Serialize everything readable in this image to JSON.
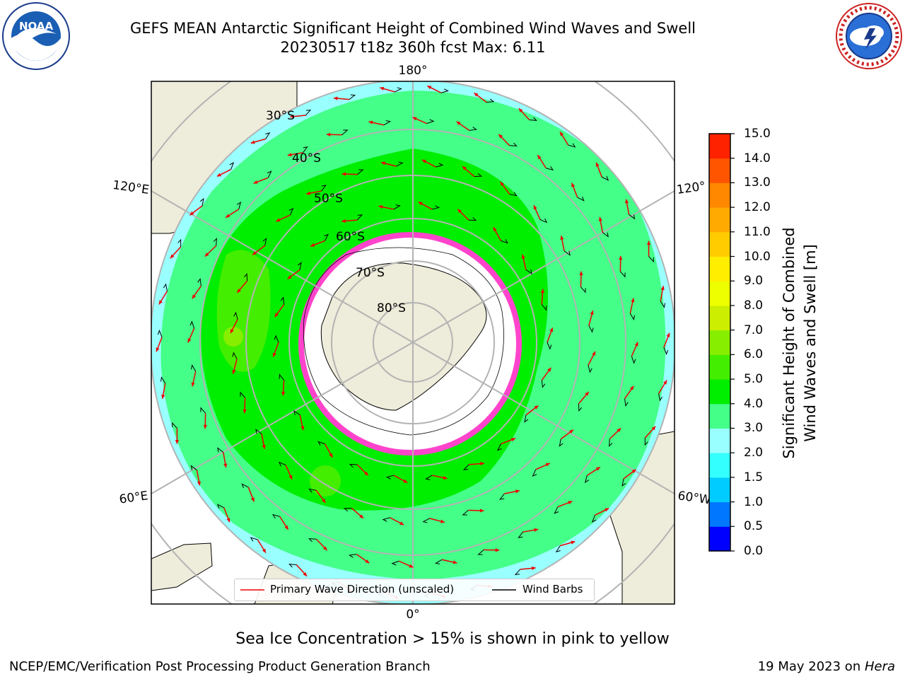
{
  "title_line1": "GEFS MEAN Antarctic Significant Height of Combined Wind Waves and Swell",
  "title_line2": "20230517 t18z 360h fcst   Max: 6.11",
  "logos": {
    "left": "noaa-logo",
    "right": "nws-logo"
  },
  "map": {
    "projection": "south-polar-stereographic",
    "lon_labels": {
      "top": "180°",
      "bottom": "0°",
      "left_upper": "120°E",
      "left_lower": "60°E",
      "right_upper": "120°",
      "right_lower": "60°W"
    },
    "lat_labels": [
      "30°S",
      "40°S",
      "50°S",
      "60°S",
      "70°S",
      "80°S"
    ],
    "colors": {
      "land": "#eeecda",
      "ocean_outside": "#ffffff",
      "ice": "#ff44cc",
      "graticule": "#b3b3b3",
      "arrow": "#ee0000",
      "barb": "#000000"
    }
  },
  "legend": {
    "items": [
      {
        "label": "Primary Wave Direction (unscaled)",
        "color": "#ee0000"
      },
      {
        "label": "Wind Barbs",
        "color": "#000000"
      }
    ]
  },
  "colorbar": {
    "label_line1": "Significant Height of Combined",
    "label_line2": "Wind Waves and Swell [m]",
    "ticks": [
      "0.0",
      "0.5",
      "1.0",
      "1.5",
      "2.0",
      "3.0",
      "4.0",
      "5.0",
      "6.0",
      "7.0",
      "8.0",
      "9.0",
      "10.0",
      "11.0",
      "12.0",
      "13.0",
      "14.0",
      "15.0"
    ],
    "colors": [
      "#0000ff",
      "#0077ff",
      "#00ccff",
      "#33ffff",
      "#99ffff",
      "#44ff88",
      "#00ee00",
      "#44ee00",
      "#88ee00",
      "#ccee00",
      "#eeff00",
      "#ffee00",
      "#ffcc00",
      "#ffaa00",
      "#ff8800",
      "#ff5500",
      "#ff2200"
    ]
  },
  "caption": "Sea Ice Concentration > 15% is shown in pink to yellow",
  "footer_left": "NCEP/EMC/Verification Post Processing Product Generation Branch",
  "footer_right_date": "19 May 2023 on ",
  "footer_right_host": "Hera"
}
